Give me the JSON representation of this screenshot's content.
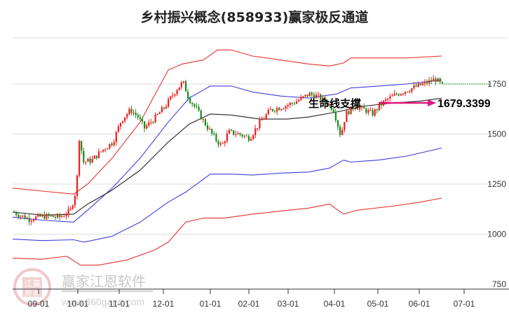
{
  "chart_data": {
    "type": "candlestick",
    "title": "乡村振兴概念(858933)赢家极反通道",
    "xlabel": "",
    "ylabel": "",
    "ylim": [
      750,
      2000
    ],
    "y_ticks": [
      750,
      1000,
      1250,
      1500,
      1750
    ],
    "x_ticks": [
      "09-01",
      "10-01",
      "11-01",
      "12-01",
      "01-01",
      "02-01",
      "03-01",
      "04-01",
      "05-01",
      "06-01",
      "07-01"
    ],
    "grid": true,
    "legend": null,
    "annotations": [
      {
        "text": "生命线支撑",
        "type": "arrow-label"
      },
      {
        "text": "1679.3399",
        "type": "value-label"
      }
    ],
    "current_price_level": 1750,
    "series": [
      {
        "name": "upper-outer-band",
        "color": "#e8322e",
        "points": [
          [
            18,
            1230
          ],
          [
            60,
            1215
          ],
          [
            105,
            1200
          ],
          [
            125,
            1250
          ],
          [
            160,
            1380
          ],
          [
            200,
            1560
          ],
          [
            240,
            1820
          ],
          [
            260,
            1850
          ],
          [
            290,
            1870
          ],
          [
            310,
            1920
          ],
          [
            330,
            1920
          ],
          [
            360,
            1890
          ],
          [
            400,
            1870
          ],
          [
            440,
            1850
          ],
          [
            470,
            1840
          ],
          [
            490,
            1855
          ],
          [
            500,
            1880
          ],
          [
            540,
            1880
          ],
          [
            580,
            1880
          ],
          [
            630,
            1890
          ]
        ]
      },
      {
        "name": "upper-inner-band",
        "color": "#3d3dde",
        "points": [
          [
            18,
            1085
          ],
          [
            60,
            1070
          ],
          [
            105,
            1060
          ],
          [
            125,
            1120
          ],
          [
            160,
            1230
          ],
          [
            200,
            1380
          ],
          [
            240,
            1560
          ],
          [
            270,
            1680
          ],
          [
            300,
            1740
          ],
          [
            330,
            1740
          ],
          [
            360,
            1710
          ],
          [
            400,
            1690
          ],
          [
            440,
            1680
          ],
          [
            480,
            1700
          ],
          [
            500,
            1730
          ],
          [
            540,
            1740
          ],
          [
            580,
            1750
          ],
          [
            630,
            1770
          ]
        ]
      },
      {
        "name": "lifeline",
        "color": "#222222",
        "points": [
          [
            18,
            1110
          ],
          [
            60,
            1095
          ],
          [
            105,
            1100
          ],
          [
            125,
            1150
          ],
          [
            160,
            1220
          ],
          [
            200,
            1320
          ],
          [
            240,
            1460
          ],
          [
            270,
            1550
          ],
          [
            300,
            1600
          ],
          [
            330,
            1595
          ],
          [
            370,
            1575
          ],
          [
            410,
            1575
          ],
          [
            440,
            1585
          ],
          [
            480,
            1610
          ],
          [
            520,
            1640
          ],
          [
            560,
            1655
          ],
          [
            600,
            1665
          ],
          [
            630,
            1679
          ]
        ]
      },
      {
        "name": "lower-inner-band",
        "color": "#3d3dde",
        "points": [
          [
            18,
            975
          ],
          [
            60,
            968
          ],
          [
            105,
            972
          ],
          [
            120,
            960
          ],
          [
            160,
            990
          ],
          [
            200,
            1060
          ],
          [
            240,
            1160
          ],
          [
            265,
            1210
          ],
          [
            300,
            1300
          ],
          [
            330,
            1300
          ],
          [
            360,
            1295
          ],
          [
            400,
            1305
          ],
          [
            440,
            1310
          ],
          [
            470,
            1330
          ],
          [
            490,
            1370
          ],
          [
            500,
            1360
          ],
          [
            540,
            1370
          ],
          [
            580,
            1390
          ],
          [
            630,
            1430
          ]
        ]
      },
      {
        "name": "lower-outer-band",
        "color": "#e8322e",
        "points": [
          [
            18,
            880
          ],
          [
            60,
            875
          ],
          [
            95,
            890
          ],
          [
            115,
            845
          ],
          [
            140,
            845
          ],
          [
            180,
            870
          ],
          [
            220,
            920
          ],
          [
            240,
            960
          ],
          [
            265,
            1060
          ],
          [
            290,
            1080
          ],
          [
            320,
            1080
          ],
          [
            360,
            1100
          ],
          [
            400,
            1115
          ],
          [
            440,
            1130
          ],
          [
            470,
            1150
          ],
          [
            490,
            1100
          ],
          [
            510,
            1120
          ],
          [
            560,
            1140
          ],
          [
            600,
            1160
          ],
          [
            630,
            1180
          ]
        ]
      }
    ],
    "candles_summary": {
      "start": 1110,
      "oct_rally_high": 1590,
      "nov_high": 1650,
      "dec_high": 1770,
      "jan_low": 1400,
      "mar_high": 1720,
      "apr_low": 1480,
      "jun_high": 1780,
      "last_close": 1740
    }
  },
  "header": {
    "title": "乡村振兴概念(858933)赢家极反通道"
  },
  "annotation": {
    "label": "生命线支撑",
    "value": "1679.3399",
    "arrow_color": "#e0197d"
  },
  "axis": {
    "y_labels": [
      "1750",
      "1500",
      "1250",
      "1000",
      "750"
    ],
    "x_labels": [
      "09-01",
      "10-01",
      "11-01",
      "12-01",
      "01-01",
      "02-01",
      "03-01",
      "04-01",
      "05-01",
      "06-01",
      "07-01"
    ]
  },
  "watermark": {
    "name": "赢家江恩软件",
    "url": "www.360gann.com",
    "seal_chars": [
      "江",
      "赢",
      "恩",
      "家"
    ]
  },
  "colors": {
    "up": "#ee1c1c",
    "down": "#1a8a1a",
    "band_outer": "#e8322e",
    "band_inner": "#3d3dde",
    "lifeline": "#222222",
    "grid": "#dddddd",
    "price_line": "#2a9a2a"
  }
}
